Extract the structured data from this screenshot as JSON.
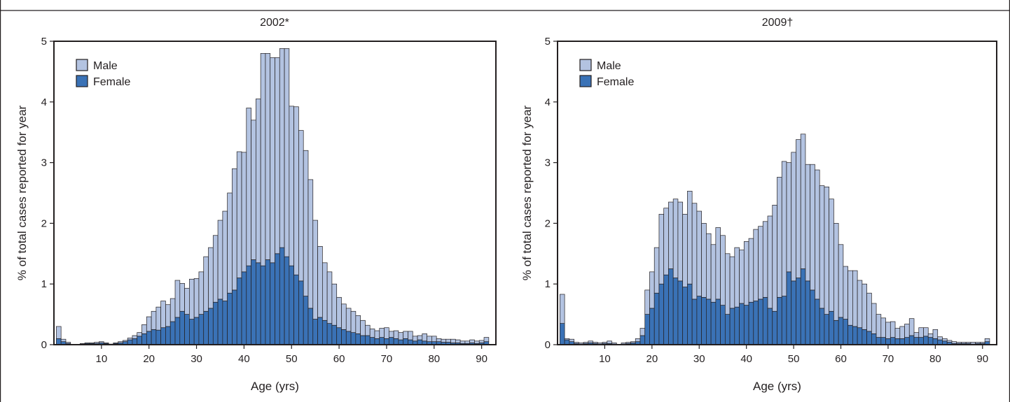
{
  "colors": {
    "male": "#b3c3e1",
    "female": "#3a72b6",
    "ink": "#231f20"
  },
  "chart_data": [
    {
      "type": "bar",
      "stacked": true,
      "title": "2002*",
      "xlabel": "Age (yrs)",
      "ylabel": "% of total cases reported for year",
      "xlim": [
        0,
        93
      ],
      "ylim": [
        0,
        5
      ],
      "yticks": [
        "0",
        "1",
        "2",
        "3",
        "4",
        "5"
      ],
      "xticks": [
        "10",
        "20",
        "30",
        "40",
        "50",
        "60",
        "70",
        "80",
        "90"
      ],
      "legend": {
        "position": "top-left",
        "entries": [
          "Male",
          "Female"
        ]
      },
      "x": [
        1,
        2,
        3,
        4,
        5,
        6,
        7,
        8,
        9,
        10,
        11,
        12,
        13,
        14,
        15,
        16,
        17,
        18,
        19,
        20,
        21,
        22,
        23,
        24,
        25,
        26,
        27,
        28,
        29,
        30,
        31,
        32,
        33,
        34,
        35,
        36,
        37,
        38,
        39,
        40,
        41,
        42,
        43,
        44,
        45,
        46,
        47,
        48,
        49,
        50,
        51,
        52,
        53,
        54,
        55,
        56,
        57,
        58,
        59,
        60,
        61,
        62,
        63,
        64,
        65,
        66,
        67,
        68,
        69,
        70,
        71,
        72,
        73,
        74,
        75,
        76,
        77,
        78,
        79,
        80,
        81,
        82,
        83,
        84,
        85,
        86,
        87,
        88,
        89,
        90,
        91
      ],
      "series": [
        {
          "name": "Female",
          "values": [
            0.1,
            0.05,
            0.02,
            0,
            0,
            0.01,
            0.02,
            0.02,
            0.02,
            0.03,
            0.02,
            0.01,
            0.02,
            0.03,
            0.05,
            0.08,
            0.1,
            0.14,
            0.18,
            0.22,
            0.25,
            0.24,
            0.28,
            0.3,
            0.38,
            0.45,
            0.55,
            0.5,
            0.42,
            0.45,
            0.5,
            0.55,
            0.6,
            0.7,
            0.75,
            0.72,
            0.85,
            0.9,
            1.1,
            1.2,
            1.3,
            1.4,
            1.35,
            1.3,
            1.4,
            1.35,
            1.5,
            1.6,
            1.45,
            1.3,
            1.15,
            1.05,
            0.8,
            0.6,
            0.42,
            0.45,
            0.4,
            0.35,
            0.32,
            0.28,
            0.25,
            0.22,
            0.2,
            0.18,
            0.15,
            0.15,
            0.12,
            0.1,
            0.12,
            0.1,
            0.12,
            0.1,
            0.08,
            0.1,
            0.08,
            0.06,
            0.08,
            0.06,
            0.05,
            0.05,
            0.05,
            0.04,
            0.04,
            0.03,
            0.03,
            0.02,
            0.02,
            0.03,
            0.02,
            0.03,
            0.05
          ]
        },
        {
          "name": "Male",
          "values": [
            0.2,
            0.04,
            0.02,
            0,
            0,
            0.01,
            0.01,
            0.01,
            0.02,
            0.02,
            0.01,
            0,
            0.01,
            0.02,
            0.02,
            0.03,
            0.05,
            0.06,
            0.15,
            0.24,
            0.3,
            0.38,
            0.44,
            0.36,
            0.38,
            0.61,
            0.46,
            0.43,
            0.66,
            0.64,
            0.7,
            0.9,
            1.0,
            1.1,
            1.3,
            1.48,
            1.65,
            2.0,
            2.08,
            1.97,
            2.6,
            2.3,
            2.7,
            3.5,
            3.4,
            3.38,
            3.23,
            3.28,
            3.43,
            2.63,
            2.77,
            2.48,
            2.4,
            2.12,
            1.63,
            1.17,
            0.95,
            0.85,
            0.68,
            0.5,
            0.42,
            0.38,
            0.35,
            0.3,
            0.25,
            0.17,
            0.14,
            0.13,
            0.15,
            0.18,
            0.1,
            0.13,
            0.12,
            0.12,
            0.14,
            0.08,
            0.07,
            0.12,
            0.09,
            0.09,
            0.05,
            0.05,
            0.05,
            0.06,
            0.05,
            0.04,
            0.04,
            0.05,
            0.04,
            0.04,
            0.07
          ]
        }
      ]
    },
    {
      "type": "bar",
      "stacked": true,
      "title": "2009†",
      "xlabel": "Age (yrs)",
      "ylabel": "% of total cases reported for year",
      "xlim": [
        0,
        93
      ],
      "ylim": [
        0,
        5
      ],
      "yticks": [
        "0",
        "1",
        "2",
        "3",
        "4",
        "5"
      ],
      "xticks": [
        "10",
        "20",
        "30",
        "40",
        "50",
        "60",
        "70",
        "80",
        "90"
      ],
      "legend": {
        "position": "top-left",
        "entries": [
          "Male",
          "Female"
        ]
      },
      "x": [
        1,
        2,
        3,
        4,
        5,
        6,
        7,
        8,
        9,
        10,
        11,
        12,
        13,
        14,
        15,
        16,
        17,
        18,
        19,
        20,
        21,
        22,
        23,
        24,
        25,
        26,
        27,
        28,
        29,
        30,
        31,
        32,
        33,
        34,
        35,
        36,
        37,
        38,
        39,
        40,
        41,
        42,
        43,
        44,
        45,
        46,
        47,
        48,
        49,
        50,
        51,
        52,
        53,
        54,
        55,
        56,
        57,
        58,
        59,
        60,
        61,
        62,
        63,
        64,
        65,
        66,
        67,
        68,
        69,
        70,
        71,
        72,
        73,
        74,
        75,
        76,
        77,
        78,
        79,
        80,
        81,
        82,
        83,
        84,
        85,
        86,
        87,
        88,
        89,
        90,
        91
      ],
      "series": [
        {
          "name": "Female",
          "values": [
            0.35,
            0.08,
            0.05,
            0.02,
            0.01,
            0.02,
            0.03,
            0.02,
            0.01,
            0.02,
            0.02,
            0.01,
            0,
            0.01,
            0.02,
            0.03,
            0.05,
            0.15,
            0.5,
            0.6,
            0.85,
            1.0,
            1.15,
            1.25,
            1.1,
            1.05,
            0.95,
            1.0,
            0.75,
            0.8,
            0.78,
            0.75,
            0.7,
            0.75,
            0.65,
            0.5,
            0.6,
            0.62,
            0.68,
            0.65,
            0.7,
            0.72,
            0.75,
            0.78,
            0.6,
            0.55,
            0.78,
            0.8,
            1.2,
            1.05,
            1.1,
            1.25,
            1.05,
            0.9,
            0.75,
            0.6,
            0.5,
            0.55,
            0.4,
            0.45,
            0.42,
            0.32,
            0.3,
            0.28,
            0.25,
            0.22,
            0.18,
            0.12,
            0.12,
            0.1,
            0.12,
            0.1,
            0.1,
            0.12,
            0.15,
            0.12,
            0.12,
            0.14,
            0.12,
            0.1,
            0.08,
            0.06,
            0.04,
            0.02,
            0.02,
            0.02,
            0.02,
            0.01,
            0.02,
            0.02,
            0.05
          ]
        },
        {
          "name": "Male",
          "values": [
            0.48,
            0.02,
            0.04,
            0.02,
            0.02,
            0.02,
            0.03,
            0.02,
            0.02,
            0.02,
            0.04,
            0.02,
            0,
            0.02,
            0.02,
            0.02,
            0.05,
            0.12,
            0.4,
            0.6,
            0.75,
            1.15,
            1.1,
            1.1,
            1.3,
            1.3,
            1.2,
            1.53,
            1.58,
            1.4,
            1.22,
            1.08,
            0.95,
            1.18,
            1.15,
            1.0,
            0.85,
            0.98,
            0.88,
            1.05,
            1.05,
            1.18,
            1.2,
            1.25,
            1.52,
            1.75,
            1.98,
            2.22,
            1.8,
            2.12,
            2.28,
            2.22,
            1.92,
            2.07,
            2.13,
            2.02,
            2.1,
            1.85,
            1.6,
            1.2,
            0.87,
            0.9,
            0.92,
            0.78,
            0.75,
            0.63,
            0.5,
            0.38,
            0.32,
            0.27,
            0.26,
            0.17,
            0.2,
            0.22,
            0.28,
            0.08,
            0.16,
            0.14,
            0.06,
            0.15,
            0.05,
            0.04,
            0.03,
            0.03,
            0.02,
            0.02,
            0.02,
            0.03,
            0.02,
            0.02,
            0.05
          ]
        }
      ]
    }
  ]
}
